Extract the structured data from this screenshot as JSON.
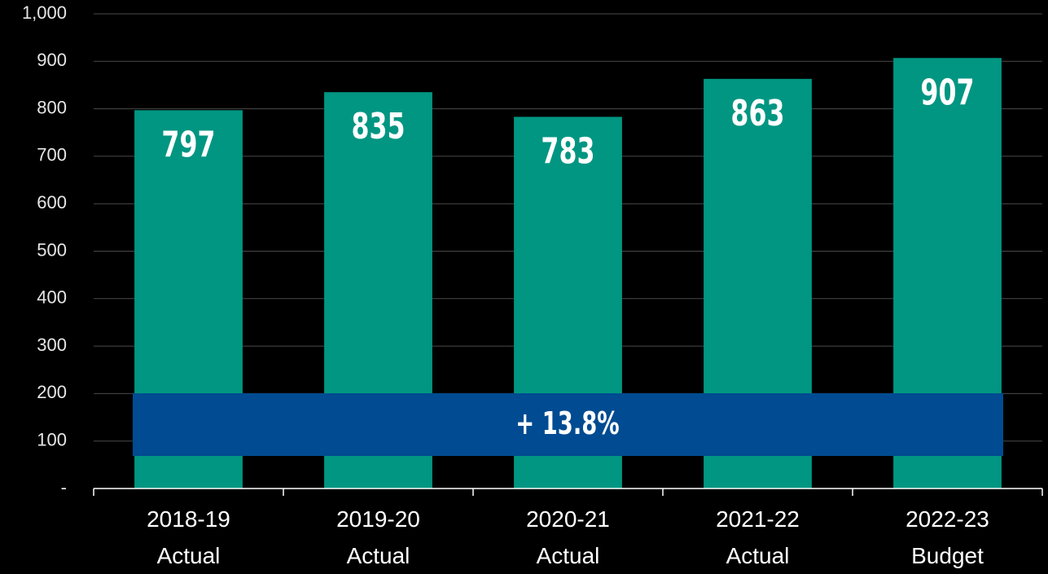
{
  "chart_data": {
    "type": "bar",
    "categories": [
      "2018-19\nActual",
      "2019-20\nActual",
      "2020-21\nActual",
      "2021-22\nActual",
      "2022-23\nBudget"
    ],
    "values": [
      797,
      835,
      783,
      863,
      907
    ],
    "color": "#009682",
    "ylim": [
      0,
      1000
    ],
    "yticks": [
      {
        "value": 0,
        "label": "-"
      },
      100,
      200,
      300,
      400,
      500,
      600,
      700,
      800,
      900,
      {
        "value": 1000,
        "label": "1,000"
      }
    ],
    "grid": true,
    "annotation": "+ 13.8%"
  }
}
